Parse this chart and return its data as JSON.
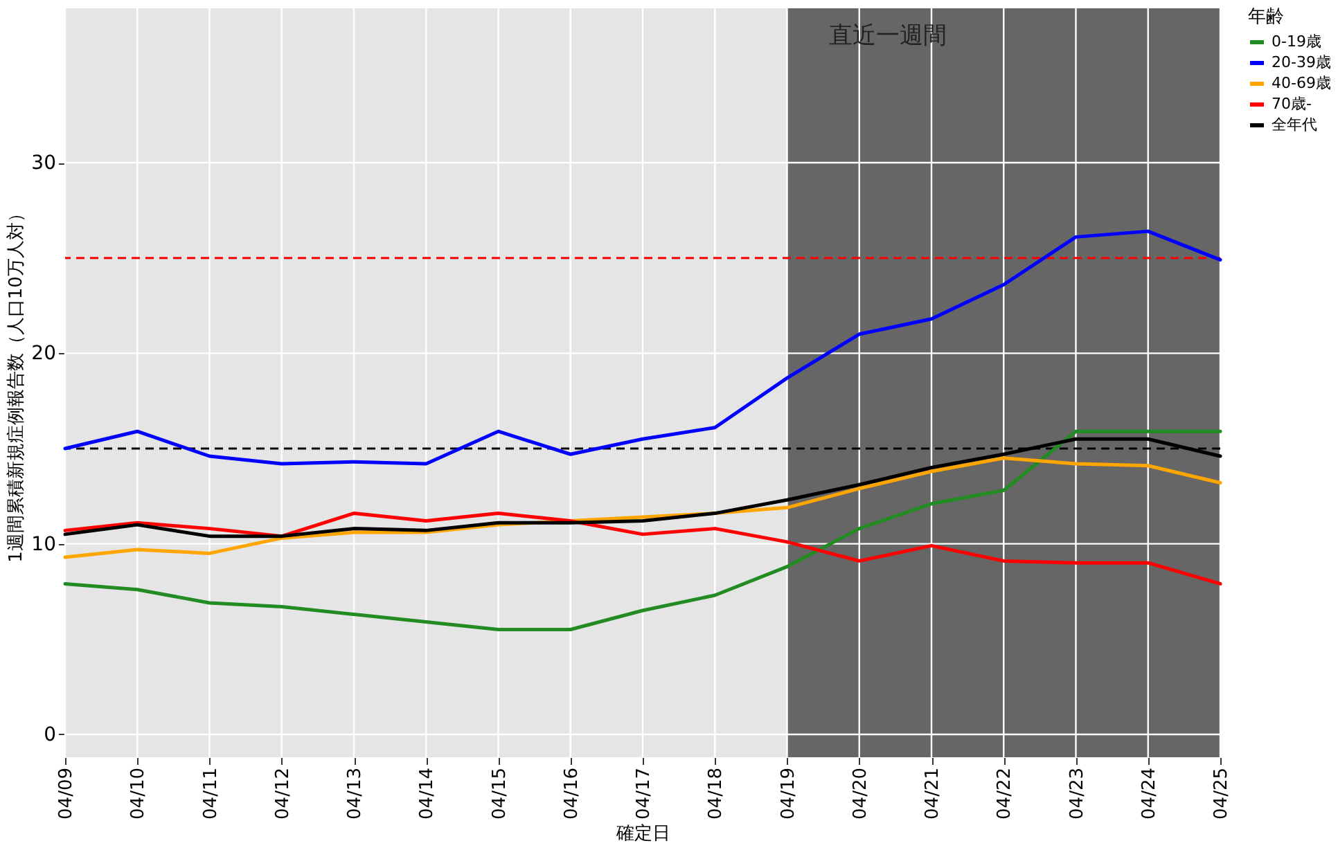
{
  "chart_data": {
    "type": "line",
    "xlabel": "確定日",
    "ylabel": "1週間累積新規症例報告数（人口10万人対）",
    "legend_title": "年齢",
    "legend": "right",
    "grid": true,
    "line_style": "solid",
    "marker": "none",
    "categories": [
      "04/09",
      "04/10",
      "04/11",
      "04/12",
      "04/13",
      "04/14",
      "04/15",
      "04/16",
      "04/17",
      "04/18",
      "04/19",
      "04/20",
      "04/21",
      "04/22",
      "04/23",
      "04/24",
      "04/25"
    ],
    "ylim": [
      -1.2,
      38.1
    ],
    "yticks": [
      0,
      10,
      20,
      30
    ],
    "series": [
      {
        "name": "0-19歳",
        "color": "#228b22",
        "values": [
          7.9,
          7.6,
          6.9,
          6.7,
          6.3,
          5.9,
          5.5,
          5.5,
          6.5,
          7.3,
          8.8,
          10.8,
          12.1,
          12.8,
          15.9,
          15.9,
          15.9
        ]
      },
      {
        "name": "20-39歳",
        "color": "#0000ff",
        "values": [
          15.0,
          15.9,
          14.6,
          14.2,
          14.3,
          14.2,
          15.9,
          14.7,
          15.5,
          16.1,
          18.7,
          21.0,
          21.8,
          23.6,
          26.1,
          26.4,
          24.9
        ]
      },
      {
        "name": "40-69歳",
        "color": "#ffa500",
        "values": [
          9.3,
          9.7,
          9.5,
          10.3,
          10.6,
          10.6,
          11.0,
          11.2,
          11.4,
          11.6,
          11.9,
          12.9,
          13.8,
          14.5,
          14.2,
          14.1,
          13.2
        ]
      },
      {
        "name": "70歳-",
        "color": "#ff0000",
        "values": [
          10.7,
          11.1,
          10.8,
          10.4,
          11.6,
          11.2,
          11.6,
          11.2,
          10.5,
          10.8,
          10.1,
          9.1,
          9.9,
          9.1,
          9.0,
          9.0,
          7.9
        ]
      },
      {
        "name": "全年代",
        "color": "#000000",
        "values": [
          10.5,
          11.0,
          10.4,
          10.4,
          10.8,
          10.7,
          11.1,
          11.1,
          11.2,
          11.6,
          12.3,
          13.1,
          14.0,
          14.7,
          15.5,
          15.5,
          14.6
        ]
      }
    ],
    "ref_lines": [
      {
        "axis": "y",
        "value": 25,
        "color": "#ff0000",
        "line_style": "dashed"
      },
      {
        "axis": "y",
        "value": 15,
        "color": "#000000",
        "line_style": "dashed"
      }
    ],
    "bands": [
      {
        "axis": "x",
        "from": "04/19",
        "to": "04/25",
        "label": "直近一週間",
        "color": "#666666"
      }
    ]
  }
}
